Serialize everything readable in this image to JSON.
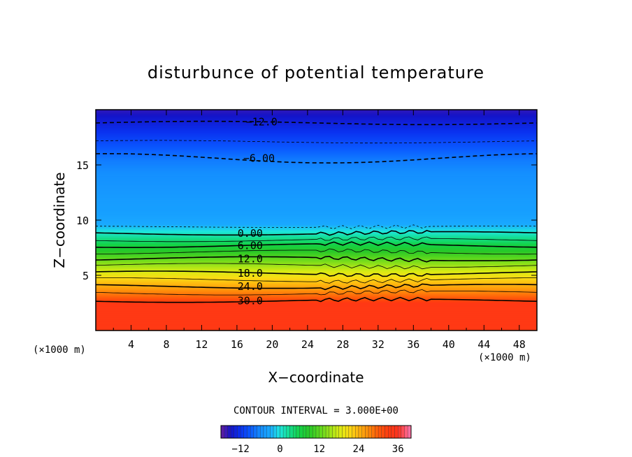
{
  "chart_data": {
    "type": "heatmap",
    "title": "disturbunce of potential temperature",
    "xlabel": "X−coordinate",
    "ylabel": "Z−coordinate",
    "x_unit_left": "(×1000 m)",
    "x_unit_right": "(×1000 m)",
    "xlim": [
      0,
      50
    ],
    "ylim": [
      0,
      20
    ],
    "xticks": [
      "4",
      "8",
      "12",
      "16",
      "20",
      "24",
      "28",
      "32",
      "36",
      "40",
      "44",
      "48"
    ],
    "yticks": [
      "5",
      "10",
      "15"
    ],
    "contour_interval_text": "CONTOUR INTERVAL = 3.000E+00",
    "contour_labels": [
      {
        "text": "−12.0",
        "x": 18.8,
        "z": 18.9
      },
      {
        "text": "−6.00",
        "x": 18.5,
        "z": 15.6
      },
      {
        "text": "0.00",
        "x": 17.5,
        "z": 8.8
      },
      {
        "text": "6.00",
        "x": 17.5,
        "z": 7.7
      },
      {
        "text": "12.0",
        "x": 17.5,
        "z": 6.5
      },
      {
        "text": "18.0",
        "x": 17.5,
        "z": 5.2
      },
      {
        "text": "24.0",
        "x": 17.5,
        "z": 4.0
      },
      {
        "text": "30.0",
        "x": 17.5,
        "z": 2.7
      }
    ],
    "colorbar": {
      "min": -18,
      "max": 40,
      "tick_labels": [
        "−12",
        "0",
        "12",
        "24",
        "36"
      ],
      "tick_values": [
        -12,
        0,
        12,
        24,
        36
      ]
    },
    "field_profile": {
      "z": [
        0,
        2.5,
        3.0,
        4.0,
        5.0,
        6.0,
        7.0,
        8.0,
        9.0,
        9.6,
        10.5,
        12.0,
        14.0,
        15.5,
        17.0,
        18.5,
        20.0
      ],
      "value": [
        34,
        34,
        30,
        25,
        20,
        15,
        10,
        5,
        0,
        -3,
        -4,
        -4.5,
        -5.5,
        -7,
        -10,
        -13,
        -16
      ]
    }
  }
}
